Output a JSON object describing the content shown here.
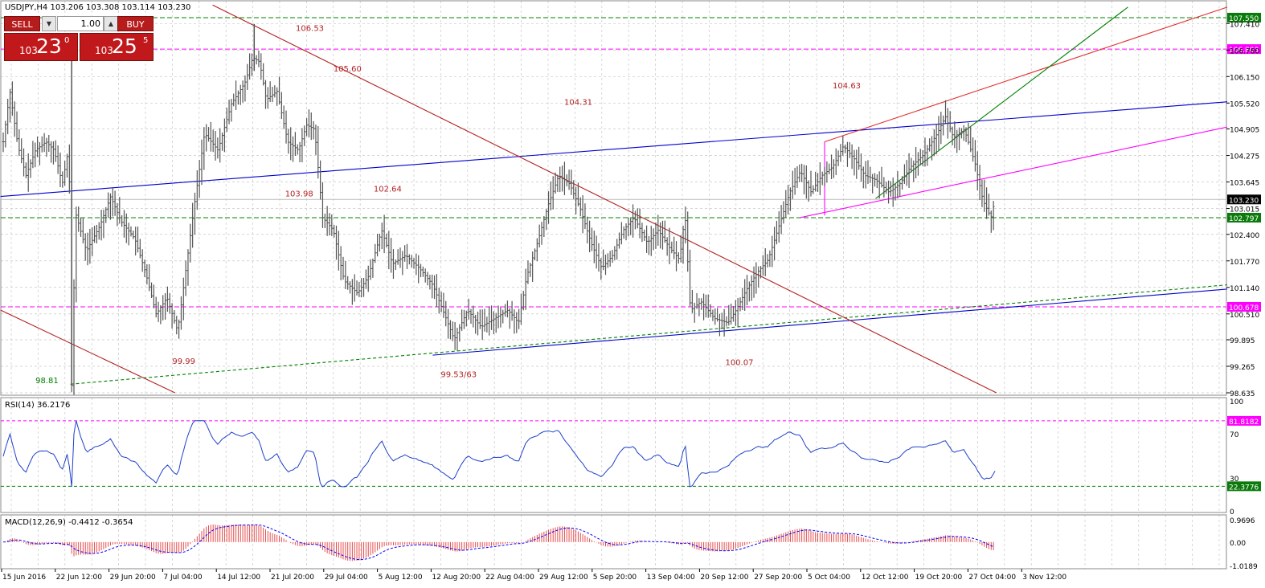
{
  "header": {
    "symbol_line": "USDJPY,H4  103.206 103.308 103.114 103.230",
    "rsi_label": "RSI(14) 36.2176",
    "macd_label": "MACD(12,26,9) -0.4412 -0.3654"
  },
  "trade_panel": {
    "sell_label": "SELL",
    "buy_label": "BUY",
    "lot": "1.00",
    "sell_prefix": "103",
    "sell_big": "23",
    "sell_sup": "0",
    "buy_prefix": "103",
    "buy_big": "25",
    "buy_sup": "5"
  },
  "colors": {
    "candles": "#555555",
    "blue_channel": "#0000cc",
    "red_trend": "#b22222",
    "magenta": "#ff00ff",
    "green": "#008000",
    "rsi": "#1e40c8",
    "macd_hist": "#e64c4c",
    "macd_signal": "#0000ff",
    "tag_green": "#0a7a0a"
  },
  "chart_data": [
    {
      "type": "line",
      "name": "price",
      "ylim": [
        98.635,
        107.74
      ],
      "x_ticks": [
        "15 Jun 2016",
        "22 Jun 12:00",
        "29 Jun 20:00",
        "7 Jul 04:00",
        "14 Jul 12:00",
        "21 Jul 20:00",
        "29 Jul 04:00",
        "5 Aug 12:00",
        "12 Aug 20:00",
        "22 Aug 04:00",
        "29 Aug 12:00",
        "5 Sep 20:00",
        "13 Sep 04:00",
        "20 Sep 12:00",
        "27 Sep 20:00",
        "5 Oct 04:00",
        "12 Oct 12:00",
        "19 Oct 20:00",
        "27 Oct 04:00",
        "3 Nov 12:00"
      ],
      "y_ticks": [
        "107.410",
        "106.780",
        "106.150",
        "105.520",
        "104.905",
        "104.275",
        "103.645",
        "103.015",
        "102.400",
        "101.770",
        "101.140",
        "100.510",
        "99.895",
        "99.265",
        "98.635"
      ],
      "close_path": [
        [
          0,
          104.6
        ],
        [
          0.25,
          105.8
        ],
        [
          0.55,
          104.5
        ],
        [
          0.85,
          103.8
        ],
        [
          1.2,
          104.4
        ],
        [
          1.6,
          104.6
        ],
        [
          1.9,
          104.4
        ],
        [
          2.2,
          103.6
        ],
        [
          2.45,
          104.5
        ],
        [
          2.55,
          98.81
        ],
        [
          2.7,
          102.9
        ],
        [
          3.1,
          102.0
        ],
        [
          3.6,
          102.6
        ],
        [
          4.0,
          103.3
        ],
        [
          4.4,
          102.7
        ],
        [
          4.9,
          102.3
        ],
        [
          5.3,
          101.5
        ],
        [
          5.7,
          100.5
        ],
        [
          6.1,
          100.9
        ],
        [
          6.5,
          100.1
        ],
        [
          6.75,
          101.3
        ],
        [
          7.1,
          103.0
        ],
        [
          7.5,
          104.8
        ],
        [
          8.0,
          104.4
        ],
        [
          8.5,
          105.5
        ],
        [
          9.0,
          106.0
        ],
        [
          9.3,
          106.6
        ],
        [
          9.55,
          106.5
        ],
        [
          9.8,
          105.6
        ],
        [
          10.2,
          105.8
        ],
        [
          10.6,
          104.6
        ],
        [
          11.0,
          104.4
        ],
        [
          11.3,
          105.0
        ],
        [
          11.6,
          104.9
        ],
        [
          11.9,
          102.8
        ],
        [
          12.3,
          102.5
        ],
        [
          12.7,
          101.3
        ],
        [
          13.2,
          101.0
        ],
        [
          13.6,
          101.4
        ],
        [
          14.1,
          102.5
        ],
        [
          14.5,
          101.7
        ],
        [
          15.0,
          101.9
        ],
        [
          15.5,
          101.6
        ],
        [
          16.0,
          101.2
        ],
        [
          16.5,
          100.4
        ],
        [
          16.8,
          99.9
        ],
        [
          17.3,
          100.6
        ],
        [
          17.8,
          100.2
        ],
        [
          18.3,
          100.4
        ],
        [
          18.8,
          100.6
        ],
        [
          19.2,
          100.3
        ],
        [
          19.5,
          101.4
        ],
        [
          19.9,
          102.2
        ],
        [
          20.3,
          103.1
        ],
        [
          20.7,
          103.8
        ],
        [
          21.1,
          103.6
        ],
        [
          21.5,
          103.0
        ],
        [
          21.9,
          102.2
        ],
        [
          22.3,
          101.6
        ],
        [
          22.7,
          101.9
        ],
        [
          23.1,
          102.5
        ],
        [
          23.5,
          102.8
        ],
        [
          24.0,
          102.2
        ],
        [
          24.4,
          102.5
        ],
        [
          24.8,
          102.1
        ],
        [
          25.2,
          101.8
        ],
        [
          25.4,
          102.9
        ],
        [
          25.6,
          100.6
        ],
        [
          26.0,
          100.8
        ],
        [
          26.5,
          100.4
        ],
        [
          27.0,
          100.3
        ],
        [
          27.3,
          100.6
        ],
        [
          27.7,
          101.1
        ],
        [
          28.1,
          101.5
        ],
        [
          28.5,
          101.8
        ],
        [
          28.9,
          102.6
        ],
        [
          29.3,
          103.4
        ],
        [
          29.7,
          103.9
        ],
        [
          30.1,
          103.4
        ],
        [
          30.5,
          103.8
        ],
        [
          30.9,
          104.0
        ],
        [
          31.3,
          104.5
        ],
        [
          31.7,
          104.2
        ],
        [
          32.1,
          103.8
        ],
        [
          32.5,
          103.7
        ],
        [
          33.0,
          103.4
        ],
        [
          33.4,
          103.6
        ],
        [
          33.8,
          104.0
        ],
        [
          34.3,
          104.3
        ],
        [
          34.8,
          104.8
        ],
        [
          35.1,
          105.2
        ],
        [
          35.4,
          104.7
        ],
        [
          35.8,
          104.9
        ],
        [
          36.2,
          104.1
        ],
        [
          36.5,
          103.2
        ],
        [
          36.8,
          102.8
        ],
        [
          36.95,
          103.23
        ]
      ]
    },
    {
      "type": "line",
      "name": "RSI(14)",
      "ylim": [
        0,
        100
      ],
      "y_ticks": [
        "100",
        "70",
        "30",
        "0"
      ],
      "levels": [
        81.8182,
        22.3776
      ],
      "last": 36.2176
    },
    {
      "type": "bar",
      "name": "MACD(12,26,9)",
      "ylim": [
        -1.0189,
        0.9696
      ],
      "y_ticks": [
        "0.9696",
        "0.00",
        "-1.0189"
      ],
      "macd_last": -0.4412,
      "signal_last": -0.3654
    }
  ],
  "annotations": {
    "price_labels": [
      {
        "text": "106.53",
        "x": 10.9,
        "y": 107.23
      },
      {
        "text": "105.60",
        "x": 12.3,
        "y": 106.27
      },
      {
        "text": "104.31",
        "x": 20.9,
        "y": 105.48
      },
      {
        "text": "104.63",
        "x": 30.9,
        "y": 105.87
      },
      {
        "text": "103.98",
        "x": 10.5,
        "y": 103.3
      },
      {
        "text": "102.64",
        "x": 13.8,
        "y": 103.42
      },
      {
        "text": "99.99",
        "x": 6.3,
        "y": 99.32
      },
      {
        "text": "99.53/63",
        "x": 16.3,
        "y": 99.01
      },
      {
        "text": "100.07",
        "x": 26.9,
        "y": 99.29
      },
      {
        "text": "98.81",
        "x": 1.2,
        "y": 98.86
      }
    ],
    "horizontal_levels": [
      {
        "value": 107.55,
        "label": "107.550",
        "style": "green-dash"
      },
      {
        "value": 106.803,
        "label": "106.803",
        "style": "magenta-dash"
      },
      {
        "value": 102.797,
        "label": "102.797",
        "style": "green-dash"
      },
      {
        "value": 100.678,
        "label": "100.678",
        "style": "magenta-dash"
      }
    ],
    "current_price_label": "103.230",
    "rsi_level_labels": [
      "81.8182",
      "22.3776"
    ]
  }
}
